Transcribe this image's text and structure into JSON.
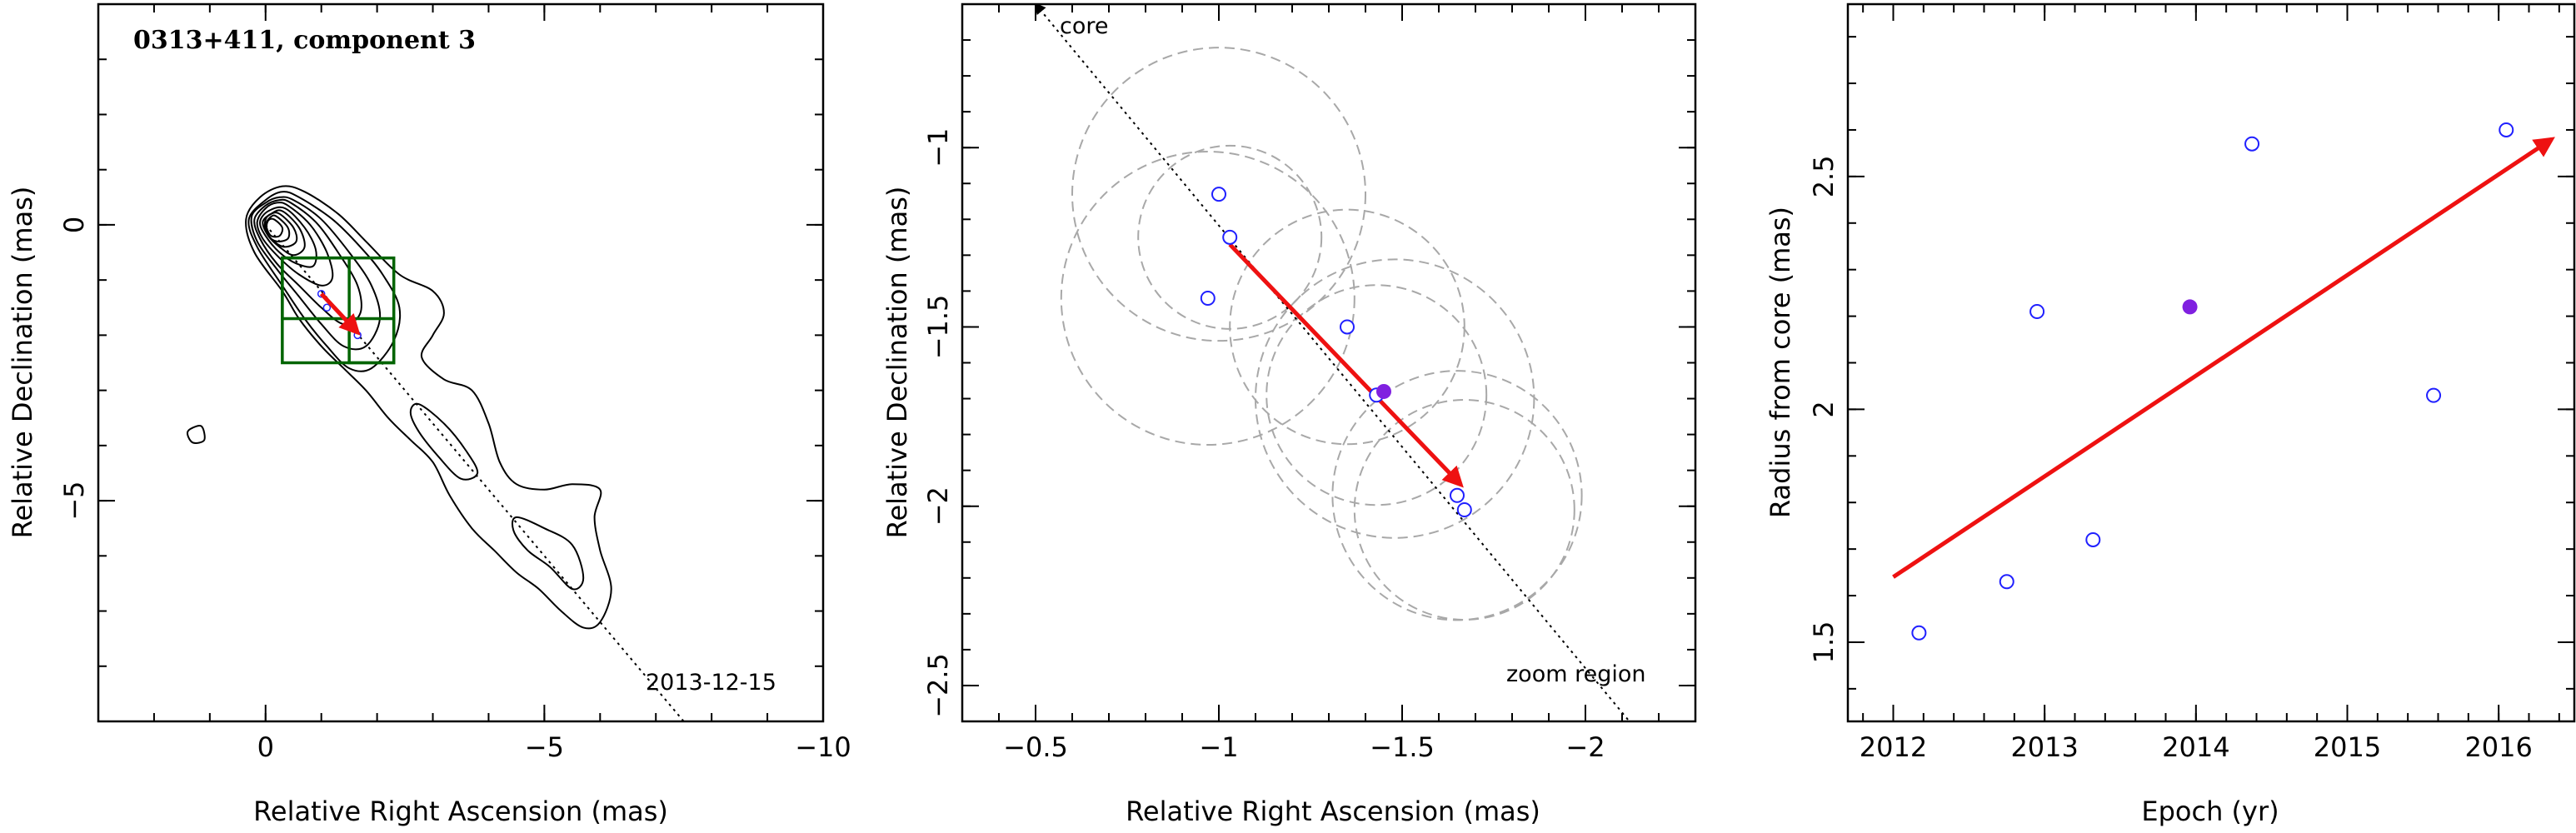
{
  "chart_data": [
    {
      "type": "contour",
      "title": "0313+411, component 3",
      "xlabel": "Relative Right Ascension (mas)",
      "ylabel": "Relative Declination (mas)",
      "xlim": [
        3,
        -10
      ],
      "ylim": [
        -9,
        4
      ],
      "x_ticks": [
        0,
        -5,
        -10
      ],
      "y_ticks": [
        0,
        -5
      ],
      "annotation": "2013-12-15",
      "jet_axis": {
        "start": [
          0,
          0
        ],
        "end": [
          -7.5,
          -9
        ]
      },
      "zoom_boxes": [
        {
          "x": [
            -0.3,
            -2.3
          ],
          "y": [
            -0.6,
            -2.5
          ]
        },
        {
          "x": [
            -0.3,
            -1.5
          ],
          "y": [
            -0.6,
            -1.7
          ]
        },
        {
          "x": [
            -1.5,
            -2.3
          ],
          "y": [
            -1.7,
            -2.5
          ]
        }
      ],
      "motion_vector": {
        "from": [
          -1.0,
          -1.25
        ],
        "to": [
          -1.65,
          -1.95
        ]
      },
      "points": [
        {
          "x": -1.0,
          "y": -1.25
        },
        {
          "x": -1.65,
          "y": -2.0
        },
        {
          "x": -1.1,
          "y": -1.5
        }
      ],
      "contours": [
        {
          "level": 1,
          "points": [
            [
              -0.7,
              0.6
            ],
            [
              -1.3,
              0.2
            ],
            [
              -1.8,
              -0.3
            ],
            [
              -2.4,
              -0.9
            ],
            [
              -3.0,
              -1.2
            ],
            [
              -3.2,
              -1.6
            ],
            [
              -3.0,
              -2.0
            ],
            [
              -2.8,
              -2.4
            ],
            [
              -3.2,
              -2.8
            ],
            [
              -3.7,
              -3.0
            ],
            [
              -4.0,
              -3.6
            ],
            [
              -4.2,
              -4.3
            ],
            [
              -4.5,
              -4.7
            ],
            [
              -5.0,
              -4.8
            ],
            [
              -5.5,
              -4.7
            ],
            [
              -6.0,
              -4.8
            ],
            [
              -5.9,
              -5.3
            ],
            [
              -6.0,
              -5.9
            ],
            [
              -6.2,
              -6.6
            ],
            [
              -6.0,
              -7.2
            ],
            [
              -5.7,
              -7.3
            ],
            [
              -5.3,
              -7.0
            ],
            [
              -4.9,
              -6.6
            ],
            [
              -4.5,
              -6.3
            ],
            [
              -4.1,
              -5.9
            ],
            [
              -3.7,
              -5.5
            ],
            [
              -3.3,
              -4.9
            ],
            [
              -3.0,
              -4.3
            ],
            [
              -2.6,
              -3.9
            ],
            [
              -2.2,
              -3.5
            ],
            [
              -1.8,
              -3.0
            ],
            [
              -1.4,
              -2.6
            ],
            [
              -1.0,
              -2.2
            ],
            [
              -0.6,
              -1.7
            ],
            [
              -0.3,
              -1.2
            ],
            [
              0.2,
              -0.5
            ],
            [
              0.35,
              0.1
            ],
            [
              0.1,
              0.5
            ],
            [
              -0.3,
              0.7
            ]
          ]
        },
        {
          "level": 2,
          "points": [
            [
              -0.6,
              0.5
            ],
            [
              -1.2,
              0.1
            ],
            [
              -1.7,
              -0.4
            ],
            [
              -2.1,
              -0.9
            ],
            [
              -2.4,
              -1.5
            ],
            [
              -2.3,
              -2.1
            ],
            [
              -1.9,
              -2.6
            ],
            [
              -1.5,
              -2.6
            ],
            [
              -1.1,
              -2.2
            ],
            [
              -0.7,
              -1.7
            ],
            [
              -0.3,
              -1.1
            ],
            [
              0.15,
              -0.4
            ],
            [
              0.3,
              0.1
            ],
            [
              0.0,
              0.45
            ],
            [
              -0.3,
              0.6
            ]
          ]
        },
        {
          "level": 3,
          "points": [
            [
              -0.5,
              0.45
            ],
            [
              -1.0,
              0.1
            ],
            [
              -1.5,
              -0.5
            ],
            [
              -1.9,
              -1.1
            ],
            [
              -2.05,
              -1.7
            ],
            [
              -1.8,
              -2.2
            ],
            [
              -1.4,
              -2.2
            ],
            [
              -1.0,
              -1.8
            ],
            [
              -0.6,
              -1.3
            ],
            [
              -0.2,
              -0.8
            ],
            [
              0.15,
              -0.3
            ],
            [
              0.25,
              0.15
            ],
            [
              0.0,
              0.4
            ],
            [
              -0.25,
              0.5
            ]
          ]
        },
        {
          "level": 4,
          "points": [
            [
              -0.45,
              0.4
            ],
            [
              -0.9,
              0.05
            ],
            [
              -1.3,
              -0.5
            ],
            [
              -1.65,
              -1.1
            ],
            [
              -1.7,
              -1.6
            ],
            [
              -1.4,
              -1.8
            ],
            [
              -1.0,
              -1.5
            ],
            [
              -0.6,
              -1.1
            ],
            [
              -0.2,
              -0.7
            ],
            [
              0.1,
              -0.25
            ],
            [
              0.2,
              0.1
            ],
            [
              0.0,
              0.35
            ],
            [
              -0.25,
              0.45
            ]
          ]
        },
        {
          "level": 5,
          "points": [
            [
              -0.4,
              0.35
            ],
            [
              -0.8,
              0.0
            ],
            [
              -1.1,
              -0.5
            ],
            [
              -1.2,
              -0.95
            ],
            [
              -1.0,
              -1.1
            ],
            [
              -0.6,
              -0.9
            ],
            [
              -0.25,
              -0.6
            ],
            [
              0.05,
              -0.25
            ],
            [
              0.15,
              0.05
            ],
            [
              0.0,
              0.3
            ],
            [
              -0.2,
              0.4
            ]
          ]
        },
        {
          "level": 6,
          "points": [
            [
              -0.35,
              0.3
            ],
            [
              -0.7,
              -0.05
            ],
            [
              -0.9,
              -0.45
            ],
            [
              -0.85,
              -0.75
            ],
            [
              -0.55,
              -0.7
            ],
            [
              -0.25,
              -0.5
            ],
            [
              0.0,
              -0.2
            ],
            [
              0.1,
              0.05
            ],
            [
              -0.05,
              0.25
            ]
          ]
        },
        {
          "level": 7,
          "points": [
            [
              -0.3,
              0.25
            ],
            [
              -0.6,
              -0.05
            ],
            [
              -0.7,
              -0.4
            ],
            [
              -0.5,
              -0.55
            ],
            [
              -0.25,
              -0.4
            ],
            [
              -0.05,
              -0.2
            ],
            [
              0.05,
              0.05
            ],
            [
              -0.1,
              0.2
            ]
          ]
        },
        {
          "level": 8,
          "points": [
            [
              -0.25,
              0.2
            ],
            [
              -0.5,
              -0.05
            ],
            [
              -0.55,
              -0.3
            ],
            [
              -0.35,
              -0.4
            ],
            [
              -0.15,
              -0.3
            ],
            [
              0.0,
              -0.1
            ],
            [
              0.0,
              0.1
            ],
            [
              -0.1,
              0.2
            ]
          ]
        },
        {
          "level": 9,
          "points": [
            [
              -0.2,
              0.15
            ],
            [
              -0.4,
              -0.05
            ],
            [
              -0.4,
              -0.25
            ],
            [
              -0.2,
              -0.3
            ],
            [
              -0.05,
              -0.2
            ],
            [
              0.0,
              0.0
            ],
            [
              -0.1,
              0.15
            ]
          ]
        },
        {
          "level": 10,
          "points": [
            [
              -0.15,
              0.1
            ],
            [
              -0.3,
              -0.05
            ],
            [
              -0.25,
              -0.2
            ],
            [
              -0.1,
              -0.2
            ],
            [
              -0.02,
              -0.05
            ],
            [
              -0.05,
              0.08
            ]
          ]
        },
        {
          "level": 11,
          "points": [
            [
              -2.75,
              -3.25
            ],
            [
              -3.2,
              -3.6
            ],
            [
              -3.6,
              -4.1
            ],
            [
              -3.8,
              -4.5
            ],
            [
              -3.5,
              -4.6
            ],
            [
              -3.1,
              -4.2
            ],
            [
              -2.75,
              -3.75
            ],
            [
              -2.6,
              -3.4
            ]
          ]
        },
        {
          "level": 12,
          "points": [
            [
              -4.5,
              -5.3
            ],
            [
              -5.0,
              -5.5
            ],
            [
              -5.5,
              -5.8
            ],
            [
              -5.7,
              -6.4
            ],
            [
              -5.5,
              -6.6
            ],
            [
              -5.1,
              -6.2
            ],
            [
              -4.7,
              -5.9
            ],
            [
              -4.45,
              -5.55
            ]
          ]
        },
        {
          "level": 13,
          "points": [
            [
              1.35,
              -3.7
            ],
            [
              1.15,
              -3.65
            ],
            [
              1.1,
              -3.9
            ],
            [
              1.3,
              -3.95
            ],
            [
              1.4,
              -3.8
            ]
          ]
        }
      ]
    },
    {
      "type": "scatter",
      "xlabel": "Relative Right Ascension (mas)",
      "ylabel": "Relative Declination (mas)",
      "xlim": [
        -0.3,
        -2.3
      ],
      "ylim": [
        -2.6,
        -0.6
      ],
      "x_ticks": [
        -0.5,
        -1,
        -1.5,
        -2
      ],
      "y_ticks": [
        -1,
        -1.5,
        -2,
        -2.5
      ],
      "annotations": [
        "core",
        "zoom region"
      ],
      "jet_axis": {
        "start": [
          -0.5,
          -0.6
        ],
        "end": [
          -2.12,
          -2.6
        ]
      },
      "motion_vector": {
        "from": [
          -1.03,
          -1.27
        ],
        "to": [
          -1.66,
          -1.94
        ]
      },
      "points": [
        {
          "x": -1.0,
          "y": -1.13
        },
        {
          "x": -1.03,
          "y": -1.25
        },
        {
          "x": -0.97,
          "y": -1.42
        },
        {
          "x": -1.35,
          "y": -1.5
        },
        {
          "x": -1.43,
          "y": -1.69
        },
        {
          "x": -1.65,
          "y": -1.97
        },
        {
          "x": -1.67,
          "y": -2.01
        }
      ],
      "mean_point": {
        "x": -1.45,
        "y": -1.68
      },
      "error_circles": [
        {
          "x": -1.0,
          "y": -1.13,
          "r": 0.4
        },
        {
          "x": -1.03,
          "y": -1.25,
          "r": 0.25
        },
        {
          "x": -0.97,
          "y": -1.42,
          "r": 0.4
        },
        {
          "x": -1.35,
          "y": -1.5,
          "r": 0.32
        },
        {
          "x": -1.43,
          "y": -1.69,
          "r": 0.3
        },
        {
          "x": -1.48,
          "y": -1.7,
          "r": 0.38
        },
        {
          "x": -1.65,
          "y": -1.97,
          "r": 0.34
        },
        {
          "x": -1.67,
          "y": -2.01,
          "r": 0.3
        }
      ]
    },
    {
      "type": "scatter",
      "xlabel": "Epoch (yr)",
      "ylabel": "Radius from core (mas)",
      "xlim": [
        2011.7,
        2016.5
      ],
      "ylim": [
        1.33,
        2.87
      ],
      "x_ticks": [
        2012,
        2013,
        2014,
        2015,
        2016
      ],
      "y_ticks": [
        1.5,
        2,
        2.5
      ],
      "points": [
        {
          "x": 2012.17,
          "y": 1.52
        },
        {
          "x": 2012.75,
          "y": 1.63
        },
        {
          "x": 2012.95,
          "y": 2.21
        },
        {
          "x": 2013.32,
          "y": 1.72
        },
        {
          "x": 2014.37,
          "y": 2.57
        },
        {
          "x": 2015.57,
          "y": 2.03
        },
        {
          "x": 2016.05,
          "y": 2.6
        }
      ],
      "mean_point": {
        "x": 2013.96,
        "y": 2.22
      },
      "trend_arrow": {
        "from": [
          2012.0,
          1.64
        ],
        "to": [
          2016.35,
          2.58
        ]
      }
    }
  ],
  "colors": {
    "points": "#2020ff",
    "mean": "#8020e0",
    "arrow": "#ee1111",
    "zoom_box": "#006400",
    "circles": "#a8a8a8"
  }
}
